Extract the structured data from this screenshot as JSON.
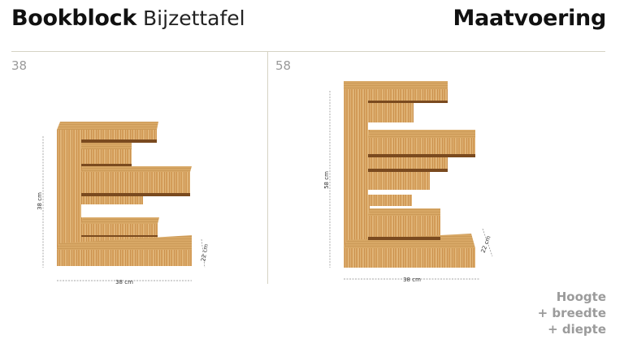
{
  "header": {
    "title_bold": "Bookblock",
    "title_light": "Bijzettafel",
    "section_title": "Maatvoering"
  },
  "panels": [
    {
      "label": "38",
      "height_dim": "38 cm",
      "width_dim": "38 cm",
      "depth_dim": "22 cm"
    },
    {
      "label": "58",
      "height_dim": "58 cm",
      "width_dim": "38 cm",
      "depth_dim": "22 cm"
    }
  ],
  "legend": {
    "line1": "Hoogte",
    "line2": "+ breedte",
    "line3": "+ diepte"
  },
  "colors": {
    "wood_light": "#e2b87c",
    "wood_mid": "#d19a55",
    "wood_dark": "#7a4a1f",
    "rule": "#d6d3c4"
  }
}
